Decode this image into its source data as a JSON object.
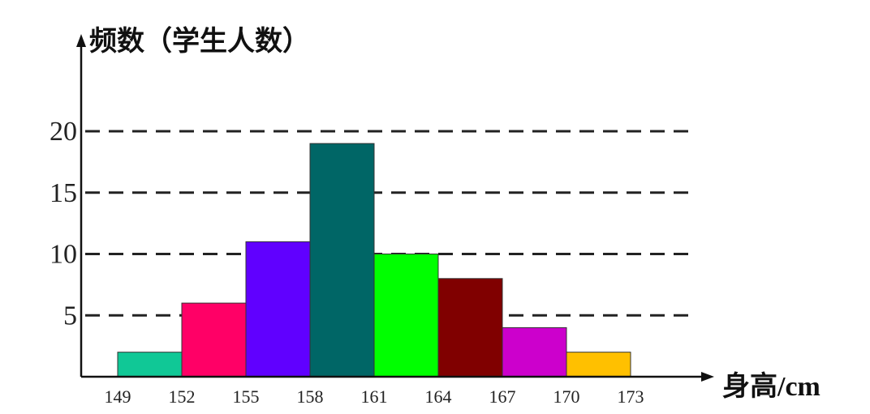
{
  "chart_data": {
    "type": "bar",
    "subtype": "histogram",
    "ylabel": "频数（学生人数）",
    "xlabel": "身高/cm",
    "bin_edges": [
      149,
      152,
      155,
      158,
      161,
      164,
      167,
      170,
      173
    ],
    "values": [
      2,
      6,
      11,
      19,
      10,
      8,
      4,
      2
    ],
    "colors": [
      "#10c896",
      "#ff0066",
      "#6000ff",
      "#006666",
      "#00ff00",
      "#800000",
      "#cc00cc",
      "#ffc000"
    ],
    "y_ticks": [
      5,
      10,
      15,
      20
    ],
    "ylim": [
      0,
      20
    ],
    "xlim": [
      149,
      173
    ],
    "grid": "horizontal dashed",
    "legend": "none"
  }
}
